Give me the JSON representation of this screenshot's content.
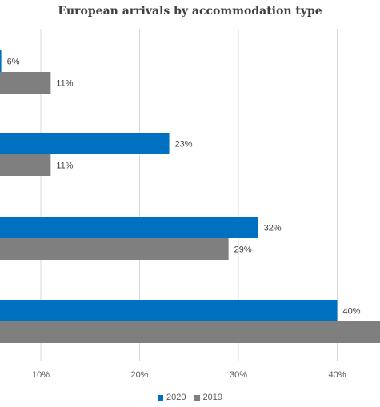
{
  "chart_data": {
    "type": "bar",
    "orientation": "horizontal",
    "title": "European arrivals by accommodation type",
    "categories": [
      "",
      "",
      "",
      ""
    ],
    "series": [
      {
        "name": "2020",
        "color": "#0070C0",
        "values": [
          6,
          23,
          32,
          40
        ],
        "labels": [
          "6%",
          "23%",
          "32%",
          "40%"
        ]
      },
      {
        "name": "2019",
        "color": "#7F7F7F",
        "values": [
          11,
          11,
          29,
          45
        ],
        "labels": [
          "11%",
          "11%",
          "29%",
          ""
        ]
      }
    ],
    "x_ticks": [
      10,
      20,
      30,
      40
    ],
    "x_tick_labels": [
      "10%",
      "20%",
      "30%",
      "40%"
    ],
    "grid": true,
    "legend_position": "bottom"
  }
}
